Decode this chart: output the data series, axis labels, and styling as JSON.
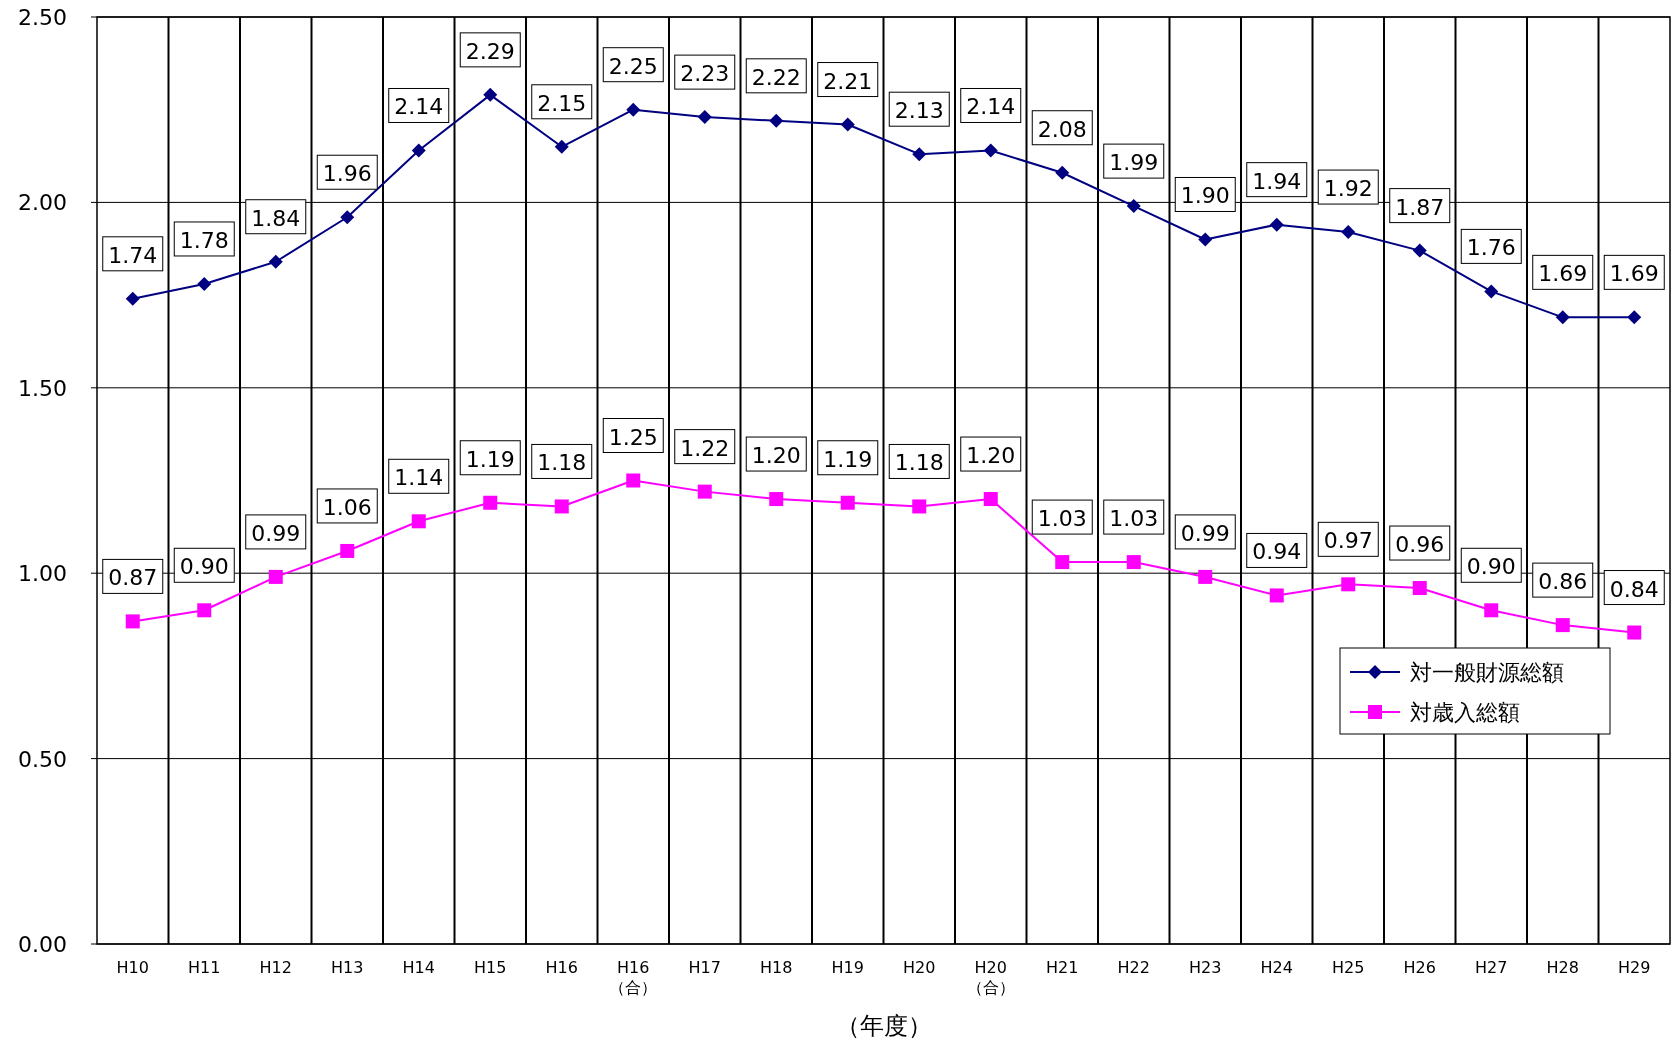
{
  "chart_data": {
    "type": "line",
    "xlabel": "（年度）",
    "categories": [
      "H10",
      "H11",
      "H12",
      "H13",
      "H14",
      "H15",
      "H16",
      "H16\n（合）",
      "H17",
      "H18",
      "H19",
      "H20",
      "H20\n（合）",
      "H21",
      "H22",
      "H23",
      "H24",
      "H25",
      "H26",
      "H27",
      "H28",
      "H29"
    ],
    "series": [
      {
        "name": "対一般財源総額",
        "color": "#000080",
        "marker": "diamond",
        "values": [
          1.74,
          1.78,
          1.84,
          1.96,
          2.14,
          2.29,
          2.15,
          2.25,
          2.23,
          2.22,
          2.21,
          2.13,
          2.14,
          2.08,
          1.99,
          1.9,
          1.94,
          1.92,
          1.87,
          1.76,
          1.69,
          1.69
        ],
        "value_labels": [
          "1.74",
          "1.78",
          "1.84",
          "1.96",
          "2.14",
          "2.29",
          "2.15",
          "2.25",
          "2.23",
          "2.22",
          "2.21",
          "2.13",
          "2.14",
          "2.08",
          "1.99",
          "1.90",
          "1.94",
          "1.92",
          "1.87",
          "1.76",
          "1.69",
          "1.69"
        ]
      },
      {
        "name": "対歳入総額",
        "color": "#ff00ff",
        "marker": "square",
        "values": [
          0.87,
          0.9,
          0.99,
          1.06,
          1.14,
          1.19,
          1.18,
          1.25,
          1.22,
          1.2,
          1.19,
          1.18,
          1.2,
          1.03,
          1.03,
          0.99,
          0.94,
          0.97,
          0.96,
          0.9,
          0.86,
          0.84
        ],
        "value_labels": [
          "0.87",
          "0.90",
          "0.99",
          "1.06",
          "1.14",
          "1.19",
          "1.18",
          "1.25",
          "1.22",
          "1.20",
          "1.19",
          "1.18",
          "1.20",
          "1.03",
          "1.03",
          "0.99",
          "0.94",
          "0.97",
          "0.96",
          "0.90",
          "0.86",
          "0.84"
        ]
      }
    ],
    "ylim": [
      0,
      2.5
    ],
    "yticks": [
      {
        "value": 0,
        "label": "0.00"
      },
      {
        "value": 0.5,
        "label": "0.50"
      },
      {
        "value": 1,
        "label": "1.00"
      },
      {
        "value": 1.5,
        "label": "1.50"
      },
      {
        "value": 2,
        "label": "2.00"
      },
      {
        "value": 2.5,
        "label": "2.50"
      }
    ],
    "grid": true,
    "legend": "right",
    "line_style": "solid"
  }
}
